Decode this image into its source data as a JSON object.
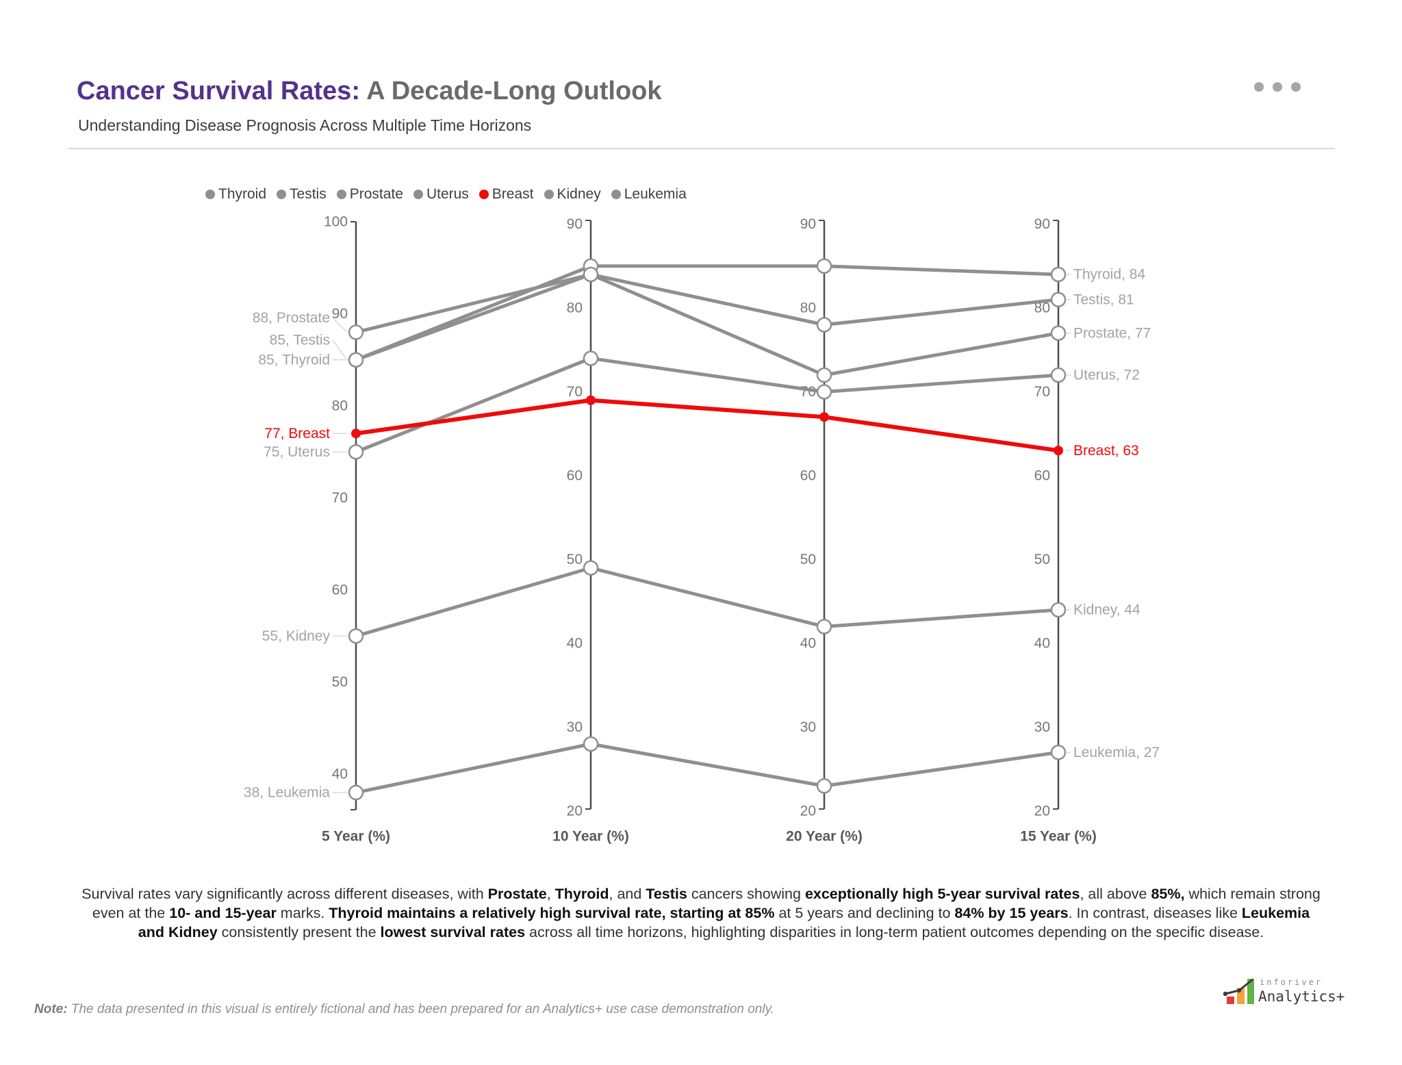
{
  "header": {
    "title_primary": "Cancer Survival Rates:",
    "title_secondary": " A Decade-Long Outlook",
    "subtitle": "Understanding Disease Prognosis Across Multiple Time Horizons",
    "menu_icon": "ellipsis-icon"
  },
  "chart_data": {
    "type": "line",
    "variant": "parallel-coordinates",
    "title": "Cancer Survival Rates: A Decade-Long Outlook",
    "legend_position": "top-left",
    "grid": false,
    "colors": {
      "default_series": "#8f8f8f",
      "highlight_series": "#f00a0a",
      "axis": "#4d4d4d",
      "tick_label": "#767676",
      "data_label": "#a3a3a3",
      "leader_line": "#d9d9d9",
      "axis_title": "#595959"
    },
    "axes": [
      {
        "label": "5 Year (%)",
        "ticks": [
          100,
          90,
          80,
          70,
          60,
          50,
          40
        ]
      },
      {
        "label": "10 Year (%)",
        "ticks": [
          90,
          80,
          70,
          60,
          50,
          40,
          30,
          20
        ]
      },
      {
        "label": "20 Year (%)",
        "ticks": [
          90,
          80,
          70,
          60,
          50,
          40,
          30,
          20
        ]
      },
      {
        "label": "15 Year (%)",
        "ticks": [
          90,
          80,
          70,
          60,
          50,
          40,
          30,
          20
        ]
      }
    ],
    "series": [
      {
        "name": "Thyroid",
        "values": [
          85,
          85,
          85,
          84
        ],
        "color": "#8f8f8f",
        "highlighted": false,
        "label_left": "85, Thyroid",
        "label_left_dy": 0,
        "label_right": "Thyroid, 84"
      },
      {
        "name": "Testis",
        "values": [
          85,
          84,
          78,
          81
        ],
        "color": "#8f8f8f",
        "highlighted": false,
        "label_left": "85, Testis",
        "label_left_dy": -29,
        "label_right": "Testis, 81"
      },
      {
        "name": "Prostate",
        "values": [
          88,
          84,
          72,
          77
        ],
        "color": "#8f8f8f",
        "highlighted": false,
        "label_left": "88, Prostate",
        "label_left_dy": -21,
        "label_right": "Prostate, 77"
      },
      {
        "name": "Uterus",
        "values": [
          75,
          74,
          70,
          72
        ],
        "color": "#8f8f8f",
        "highlighted": false,
        "label_left": "75, Uterus",
        "label_left_dy": 0,
        "label_right": "Uterus, 72"
      },
      {
        "name": "Breast",
        "values": [
          77,
          69,
          67,
          63
        ],
        "color": "#f00a0a",
        "highlighted": true,
        "label_left": "77, Breast",
        "label_left_dy": 0,
        "label_right": "Breast, 63"
      },
      {
        "name": "Kidney",
        "values": [
          55,
          49,
          42,
          44
        ],
        "color": "#8f8f8f",
        "highlighted": false,
        "label_left": "55, Kidney",
        "label_left_dy": 0,
        "label_right": "Kidney, 44"
      },
      {
        "name": "Leukemia",
        "values": [
          38,
          28,
          23,
          27
        ],
        "color": "#8f8f8f",
        "highlighted": false,
        "label_left": "38, Leukemia",
        "label_left_dy": 0,
        "label_right": "Leukemia, 27"
      }
    ]
  },
  "commentary": {
    "segments": [
      {
        "t": "Survival rates vary significantly across different diseases, with "
      },
      {
        "t": "Prostate",
        "b": true
      },
      {
        "t": ", "
      },
      {
        "t": "Thyroid",
        "b": true
      },
      {
        "t": ", and "
      },
      {
        "t": "Testis",
        "b": true
      },
      {
        "t": " cancers showing "
      },
      {
        "t": "exceptionally high 5-year survival rates",
        "b": true
      },
      {
        "t": ", all above "
      },
      {
        "t": "85%,",
        "b": true
      },
      {
        "t": " which remain strong",
        "br": true
      },
      {
        "t": "even at the "
      },
      {
        "t": "10- and 15-year",
        "b": true
      },
      {
        "t": " marks. "
      },
      {
        "t": "Thyroid maintains a relatively high survival rate, starting at 85%",
        "b": true
      },
      {
        "t": " at 5 years and declining to "
      },
      {
        "t": "84% by 15 years",
        "b": true
      },
      {
        "t": ". In contrast, diseases like "
      },
      {
        "t": "Leukemia",
        "b": true,
        "br": true
      },
      {
        "t": "and Kidney",
        "b": true
      },
      {
        "t": " consistently present the "
      },
      {
        "t": "lowest survival rates",
        "b": true
      },
      {
        "t": " across all time horizons, highlighting disparities in long-term patient outcomes depending on the specific disease."
      }
    ]
  },
  "footnote": {
    "segments": [
      {
        "t": "Note:",
        "b": true
      },
      {
        "t": " The data presented in this visual is entirely fictional and has been prepared for an Analytics+ use case demonstration only."
      }
    ]
  },
  "logo": {
    "brand_top": "inforiver",
    "brand_bottom": "Analytics+",
    "bar_colors": [
      "#e23b3b",
      "#f2a33a",
      "#62b345"
    ]
  }
}
